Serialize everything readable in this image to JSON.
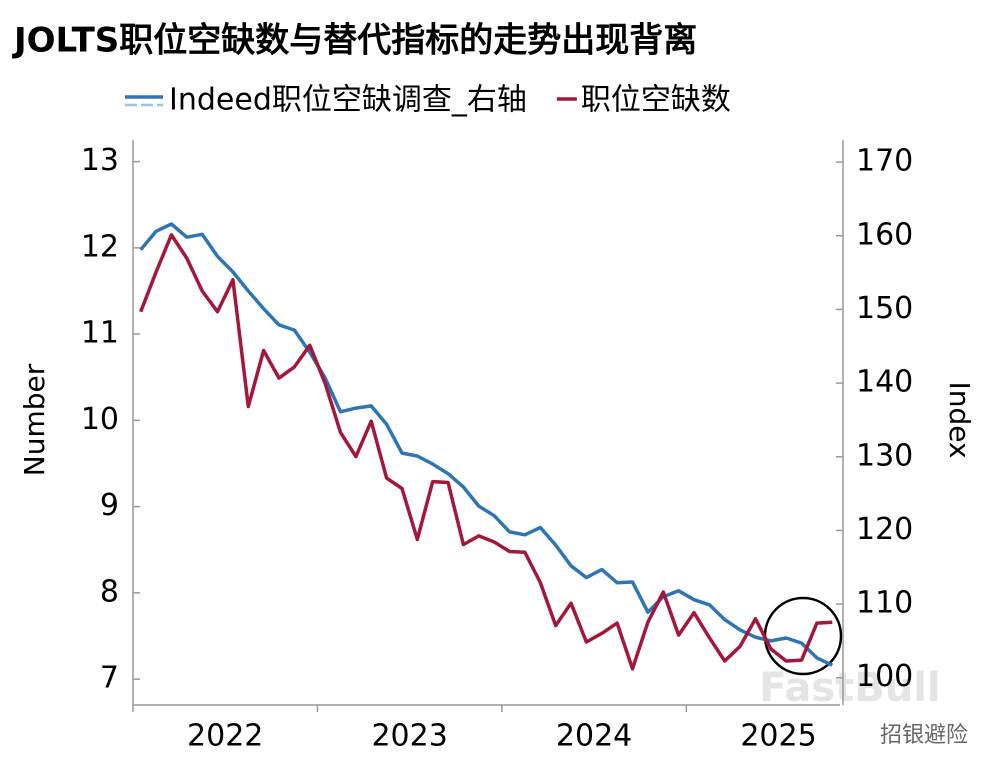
{
  "chart_data": {
    "type": "line",
    "title": "JOLTS职位空缺数与替代指标的走势出现背离",
    "y_label": "Number",
    "y2_label": "Index",
    "categories": [
      null,
      null,
      null,
      null,
      null,
      null,
      "2022",
      null,
      null,
      null,
      null,
      null,
      null,
      null,
      null,
      null,
      null,
      null,
      "2023",
      null,
      null,
      null,
      null,
      null,
      null,
      null,
      null,
      null,
      null,
      null,
      "2024",
      null,
      null,
      null,
      null,
      null,
      null,
      null,
      null,
      null,
      null,
      null,
      "2025",
      null,
      null,
      null
    ],
    "series": [
      {
        "name": "Indeed职位空缺调查_右轴",
        "color": "#2e75b6",
        "axis": "y2",
        "values": [
          158.1,
          160.6,
          161.6,
          159.8,
          160.2,
          157.2,
          155.1,
          152.5,
          150.1,
          147.9,
          147.2,
          144.2,
          140.7,
          136.1,
          136.6,
          136.9,
          134.4,
          130.5,
          130.1,
          129.0,
          127.7,
          125.9,
          123.3,
          122.0,
          119.8,
          119.4,
          120.4,
          118.0,
          115.2,
          113.6,
          114.7,
          112.9,
          113.0,
          108.9,
          111.0,
          111.8,
          110.6,
          109.9,
          107.9,
          106.5,
          105.5,
          105.0,
          105.4,
          104.7,
          102.7,
          101.7
        ]
      },
      {
        "name": "职位空缺数",
        "color": "#a5173a",
        "values": [
          11.26,
          11.72,
          12.15,
          11.88,
          11.5,
          11.26,
          11.63,
          10.16,
          10.81,
          10.49,
          10.62,
          10.87,
          10.43,
          9.86,
          9.58,
          9.99,
          9.33,
          9.21,
          8.62,
          9.29,
          9.28,
          8.56,
          8.66,
          8.59,
          8.48,
          8.47,
          8.12,
          7.62,
          7.88,
          7.43,
          7.53,
          7.65,
          7.12,
          7.66,
          8.01,
          7.51,
          7.77,
          7.48,
          7.21,
          7.38,
          7.7,
          7.35,
          7.21,
          7.22,
          7.65,
          7.66
        ]
      }
    ],
    "ylim": [
      6.7,
      13.25
    ],
    "yticks": [
      7,
      8,
      9,
      10,
      11,
      12,
      13
    ],
    "y2lim": [
      96.3,
      173
    ],
    "y2ticks": [
      100,
      110,
      120,
      130,
      140,
      150,
      160,
      170
    ],
    "watermark": "FastBull",
    "source": "招银避险"
  }
}
